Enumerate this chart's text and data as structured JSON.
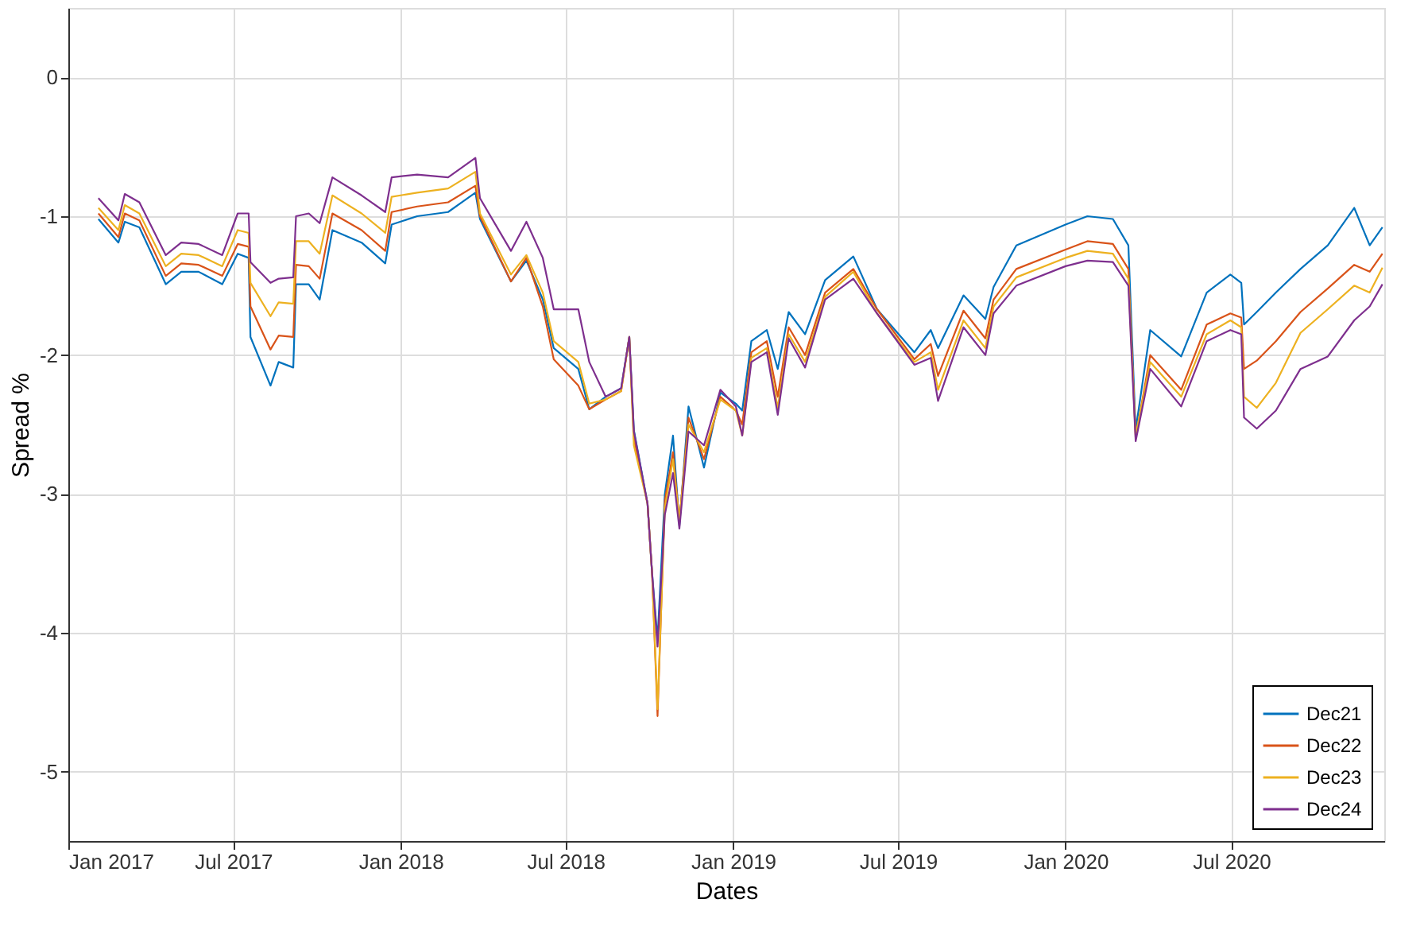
{
  "chart_data": {
    "type": "line",
    "xlabel": "Dates",
    "ylabel": "Spread %",
    "x": [
      "2017-02-03",
      "2017-02-25",
      "2017-03-04",
      "2017-03-20",
      "2017-04-18",
      "2017-05-05",
      "2017-05-24",
      "2017-06-19",
      "2017-07-06",
      "2017-07-18",
      "2017-07-20",
      "2017-08-11",
      "2017-08-20",
      "2017-09-05",
      "2017-09-08",
      "2017-09-22",
      "2017-10-04",
      "2017-10-18",
      "2017-11-19",
      "2017-12-15",
      "2017-12-22",
      "2018-01-19",
      "2018-02-22",
      "2018-03-24",
      "2018-03-29",
      "2018-05-02",
      "2018-05-19",
      "2018-06-06",
      "2018-06-18",
      "2018-07-15",
      "2018-07-27",
      "2018-08-14",
      "2018-08-31",
      "2018-09-09",
      "2018-09-14",
      "2018-09-29",
      "2018-10-04",
      "2018-10-10",
      "2018-10-18",
      "2018-10-27",
      "2018-11-03",
      "2018-11-13",
      "2018-11-30",
      "2018-12-18",
      "2019-01-04",
      "2019-01-11",
      "2019-01-21",
      "2019-02-07",
      "2019-02-19",
      "2019-03-03",
      "2019-03-21",
      "2019-04-12",
      "2019-05-13",
      "2019-06-08",
      "2019-07-19",
      "2019-08-06",
      "2019-08-14",
      "2019-09-11",
      "2019-10-05",
      "2019-10-14",
      "2019-11-08",
      "2020-01-01",
      "2020-01-25",
      "2020-02-22",
      "2020-03-10",
      "2020-03-18",
      "2020-04-03",
      "2020-05-07",
      "2020-06-04",
      "2020-06-30",
      "2020-07-12",
      "2020-07-15",
      "2020-07-29",
      "2020-08-19",
      "2020-09-15",
      "2020-10-15",
      "2020-11-13",
      "2020-11-30",
      "2020-12-14"
    ],
    "series": [
      {
        "name": "Dec21",
        "color": "#0072bd",
        "values": [
          -1.02,
          -1.19,
          -1.04,
          -1.08,
          -1.49,
          -1.4,
          -1.4,
          -1.49,
          -1.27,
          -1.3,
          -1.87,
          -2.22,
          -2.05,
          -2.09,
          -1.49,
          -1.49,
          -1.6,
          -1.1,
          -1.19,
          -1.34,
          -1.06,
          -1.0,
          -0.97,
          -0.83,
          -1.02,
          -1.47,
          -1.32,
          -1.6,
          -1.95,
          -2.1,
          -2.39,
          -2.3,
          -2.24,
          -1.87,
          -2.54,
          -3.07,
          -3.57,
          -4.05,
          -3.0,
          -2.58,
          -3.23,
          -2.37,
          -2.81,
          -2.27,
          -2.35,
          -2.4,
          -1.9,
          -1.82,
          -2.1,
          -1.69,
          -1.85,
          -1.46,
          -1.29,
          -1.67,
          -1.98,
          -1.82,
          -1.95,
          -1.57,
          -1.74,
          -1.51,
          -1.21,
          -1.06,
          -1.0,
          -1.02,
          -1.21,
          -2.54,
          -1.82,
          -2.01,
          -1.55,
          -1.42,
          -1.48,
          -1.78,
          -1.69,
          -1.55,
          -1.38,
          -1.21,
          -0.94,
          -1.21,
          -1.08
        ]
      },
      {
        "name": "Dec22",
        "color": "#d95319",
        "values": [
          -0.98,
          -1.15,
          -0.98,
          -1.03,
          -1.43,
          -1.34,
          -1.35,
          -1.43,
          -1.2,
          -1.22,
          -1.65,
          -1.96,
          -1.86,
          -1.87,
          -1.35,
          -1.36,
          -1.45,
          -0.98,
          -1.1,
          -1.25,
          -0.97,
          -0.93,
          -0.9,
          -0.78,
          -1.0,
          -1.47,
          -1.3,
          -1.65,
          -2.03,
          -2.22,
          -2.39,
          -2.32,
          -2.26,
          -1.87,
          -2.6,
          -3.07,
          -3.57,
          -4.6,
          -3.05,
          -2.7,
          -3.2,
          -2.45,
          -2.75,
          -2.3,
          -2.4,
          -2.5,
          -1.98,
          -1.9,
          -2.3,
          -1.8,
          -2.0,
          -1.55,
          -1.38,
          -1.67,
          -2.03,
          -1.92,
          -2.15,
          -1.68,
          -1.88,
          -1.6,
          -1.38,
          -1.24,
          -1.18,
          -1.2,
          -1.38,
          -2.6,
          -2.0,
          -2.25,
          -1.78,
          -1.7,
          -1.73,
          -2.1,
          -2.04,
          -1.9,
          -1.69,
          -1.52,
          -1.35,
          -1.4,
          -1.27
        ]
      },
      {
        "name": "Dec23",
        "color": "#edb120",
        "values": [
          -0.94,
          -1.1,
          -0.92,
          -0.98,
          -1.36,
          -1.27,
          -1.28,
          -1.36,
          -1.1,
          -1.12,
          -1.48,
          -1.72,
          -1.62,
          -1.63,
          -1.18,
          -1.18,
          -1.27,
          -0.85,
          -0.98,
          -1.12,
          -0.86,
          -0.83,
          -0.8,
          -0.68,
          -0.98,
          -1.42,
          -1.28,
          -1.55,
          -1.9,
          -2.05,
          -2.35,
          -2.32,
          -2.26,
          -1.87,
          -2.65,
          -3.07,
          -3.57,
          -4.55,
          -3.1,
          -2.75,
          -3.2,
          -2.5,
          -2.7,
          -2.32,
          -2.4,
          -2.58,
          -2.02,
          -1.95,
          -2.38,
          -1.85,
          -2.05,
          -1.58,
          -1.4,
          -1.7,
          -2.05,
          -1.98,
          -2.25,
          -1.75,
          -1.95,
          -1.65,
          -1.44,
          -1.3,
          -1.25,
          -1.27,
          -1.45,
          -2.58,
          -2.05,
          -2.3,
          -1.85,
          -1.75,
          -1.8,
          -2.3,
          -2.38,
          -2.2,
          -1.84,
          -1.67,
          -1.5,
          -1.55,
          -1.37
        ]
      },
      {
        "name": "Dec24",
        "color": "#7e2f8e",
        "values": [
          -0.87,
          -1.03,
          -0.84,
          -0.9,
          -1.28,
          -1.19,
          -1.2,
          -1.28,
          -0.98,
          -0.98,
          -1.33,
          -1.48,
          -1.45,
          -1.44,
          -1.0,
          -0.98,
          -1.05,
          -0.72,
          -0.85,
          -0.97,
          -0.72,
          -0.7,
          -0.72,
          -0.58,
          -0.87,
          -1.25,
          -1.04,
          -1.3,
          -1.67,
          -1.67,
          -2.05,
          -2.3,
          -2.24,
          -1.87,
          -2.55,
          -3.07,
          -3.57,
          -4.1,
          -3.15,
          -2.85,
          -3.25,
          -2.55,
          -2.65,
          -2.25,
          -2.37,
          -2.58,
          -2.05,
          -1.98,
          -2.43,
          -1.88,
          -2.09,
          -1.6,
          -1.45,
          -1.7,
          -2.07,
          -2.02,
          -2.33,
          -1.8,
          -2.0,
          -1.7,
          -1.5,
          -1.36,
          -1.32,
          -1.33,
          -1.5,
          -2.62,
          -2.1,
          -2.37,
          -1.9,
          -1.82,
          -1.85,
          -2.45,
          -2.53,
          -2.4,
          -2.1,
          -2.01,
          -1.75,
          -1.65,
          -1.49
        ]
      }
    ],
    "xlim": [
      "2017-01-01",
      "2020-12-16"
    ],
    "xticks": [
      {
        "value": "2017-01-01",
        "label": "Jan 2017"
      },
      {
        "value": "2017-07-01",
        "label": "Jul 2017"
      },
      {
        "value": "2018-01-01",
        "label": "Jan 2018"
      },
      {
        "value": "2018-07-01",
        "label": "Jul 2018"
      },
      {
        "value": "2019-01-01",
        "label": "Jan 2019"
      },
      {
        "value": "2019-07-01",
        "label": "Jul 2019"
      },
      {
        "value": "2020-01-01",
        "label": "Jan 2020"
      },
      {
        "value": "2020-07-01",
        "label": "Jul 2020"
      }
    ],
    "ylim": [
      -5.5,
      0.5
    ],
    "yticks": [
      -5,
      -4,
      -3,
      -2,
      -1,
      0
    ],
    "grid": true,
    "legend": "bottom right",
    "line_style": "solid",
    "marker": "none"
  }
}
